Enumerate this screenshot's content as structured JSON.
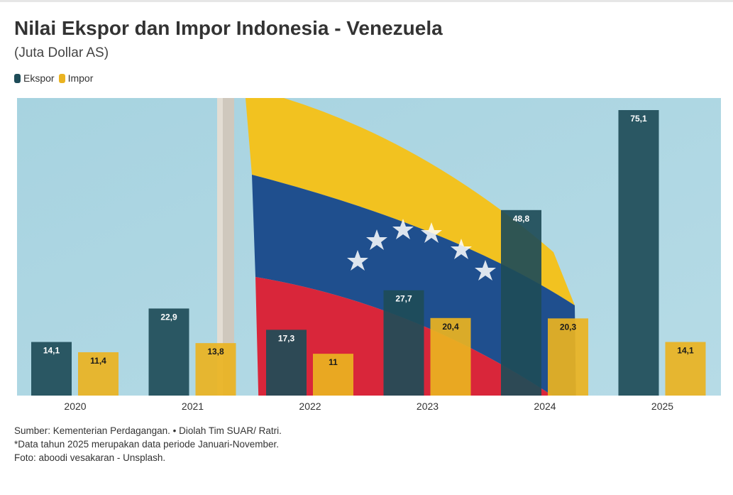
{
  "header": {
    "title": "Nilai Ekspor dan Impor Indonesia - Venezuela",
    "subtitle": "(Juta Dollar AS)"
  },
  "colors": {
    "ekspor": "#1e4c58",
    "impor": "#eab321",
    "sky": "#a8d2df",
    "flag_yellow": "#f2c220",
    "flag_blue": "#1f4f8e",
    "flag_red": "#d9263a"
  },
  "chart_data": {
    "type": "bar",
    "categories": [
      "2020",
      "2021",
      "2022",
      "2023",
      "2024",
      "2025"
    ],
    "series": [
      {
        "name": "Ekspor",
        "values": [
          14.1,
          22.9,
          17.3,
          27.7,
          48.8,
          75.1
        ],
        "labels": [
          "14,1",
          "22,9",
          "17,3",
          "27,7",
          "48,8",
          "75,1"
        ]
      },
      {
        "name": "Impor",
        "values": [
          11.4,
          13.8,
          11,
          20.4,
          20.3,
          14.1
        ],
        "labels": [
          "11,4",
          "13,8",
          "11",
          "20,4",
          "20,3",
          "14,1"
        ]
      }
    ],
    "ylim": [
      0,
      80
    ],
    "grid": false,
    "legend": "top-left"
  },
  "footer": {
    "source": "Sumber: Kementerian Perdagangan. • Diolah Tim SUAR/ Ratri.",
    "note": "*Data tahun 2025 merupakan data periode Januari-November.",
    "photo": "Foto: aboodi vesakaran - Unsplash."
  }
}
